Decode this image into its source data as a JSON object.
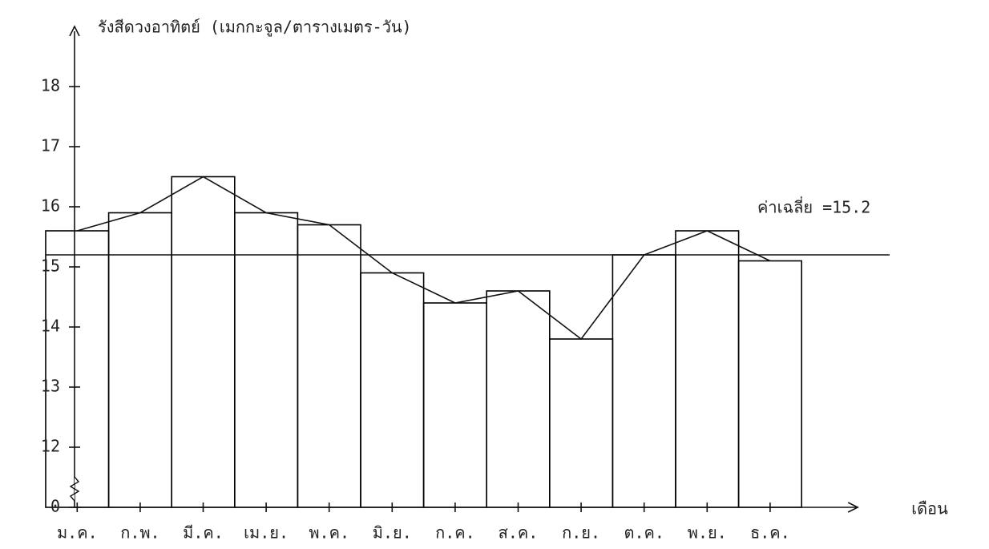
{
  "chart_data": {
    "type": "bar_line",
    "y_axis_label": "รังสีดวงอาทิตย์ (เมกกะจูล/ตารางเมตร-วัน)",
    "x_axis_label": "เดือน",
    "categories": [
      "ม.ค.",
      "ก.พ.",
      "มี.ค.",
      "เม.ย.",
      "พ.ค.",
      "มิ.ย.",
      "ก.ค.",
      "ส.ค.",
      "ก.ย.",
      "ต.ค.",
      "พ.ย.",
      "ธ.ค."
    ],
    "values": [
      15.6,
      15.9,
      16.5,
      15.9,
      15.7,
      14.9,
      14.4,
      14.6,
      13.8,
      15.2,
      15.6,
      15.1
    ],
    "color": "#000000",
    "mean": 15.2,
    "mean_label": "ค่าเฉลี่ย =15.2",
    "ylim": [
      0,
      19
    ],
    "axis_break": [
      0,
      12
    ],
    "yticks": [
      0,
      12,
      13,
      14,
      15,
      16,
      17,
      18
    ],
    "grid": false
  }
}
